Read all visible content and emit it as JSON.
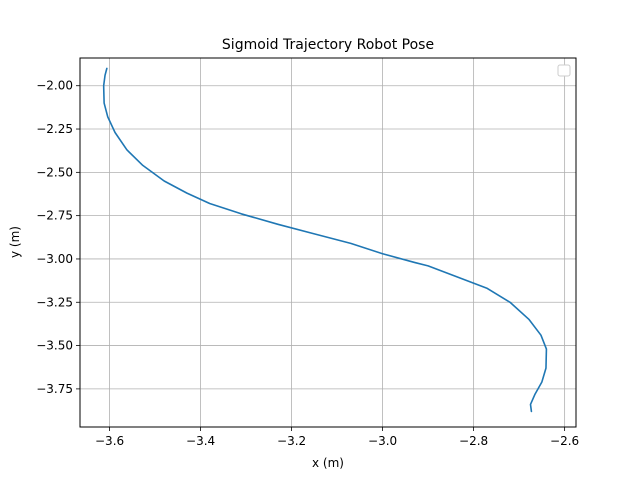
{
  "chart_data": {
    "type": "line",
    "title": "Sigmoid Trajectory Robot Pose",
    "xlabel": "x (m)",
    "ylabel": "y (m)",
    "xlim": [
      -3.665,
      -2.575
    ],
    "ylim": [
      -3.97,
      -1.84
    ],
    "xticks": [
      -3.6,
      -3.4,
      -3.2,
      -3.0,
      -2.8,
      -2.6
    ],
    "xtick_labels": [
      "−3.6",
      "−3.4",
      "−3.2",
      "−3.0",
      "−2.8",
      "−2.6"
    ],
    "yticks": [
      -2.0,
      -2.25,
      -2.5,
      -2.75,
      -3.0,
      -3.25,
      -3.5,
      -3.75
    ],
    "ytick_labels": [
      "−2.00",
      "−2.25",
      "−2.50",
      "−2.75",
      "−3.00",
      "−3.25",
      "−3.50",
      "−3.75"
    ],
    "grid": true,
    "legend": {
      "placement": "top-right",
      "entries": []
    },
    "series": [
      {
        "color": "#1f77b4",
        "points": [
          [
            -3.606,
            -1.9
          ],
          [
            -3.61,
            -1.94
          ],
          [
            -3.613,
            -2.0
          ],
          [
            -3.612,
            -2.1
          ],
          [
            -3.604,
            -2.18
          ],
          [
            -3.588,
            -2.27
          ],
          [
            -3.562,
            -2.37
          ],
          [
            -3.527,
            -2.46
          ],
          [
            -3.48,
            -2.55
          ],
          [
            -3.43,
            -2.62
          ],
          [
            -3.38,
            -2.68
          ],
          [
            -3.31,
            -2.74
          ],
          [
            -3.23,
            -2.8
          ],
          [
            -3.15,
            -2.855
          ],
          [
            -3.07,
            -2.91
          ],
          [
            -3.0,
            -2.97
          ],
          [
            -2.93,
            -3.02
          ],
          [
            -2.9,
            -3.04
          ],
          [
            -2.84,
            -3.1
          ],
          [
            -2.77,
            -3.17
          ],
          [
            -2.72,
            -3.25
          ],
          [
            -2.678,
            -3.35
          ],
          [
            -2.652,
            -3.44
          ],
          [
            -2.64,
            -3.52
          ],
          [
            -2.641,
            -3.63
          ],
          [
            -2.65,
            -3.71
          ],
          [
            -2.665,
            -3.78
          ],
          [
            -2.675,
            -3.84
          ],
          [
            -2.673,
            -3.88
          ]
        ]
      }
    ]
  }
}
